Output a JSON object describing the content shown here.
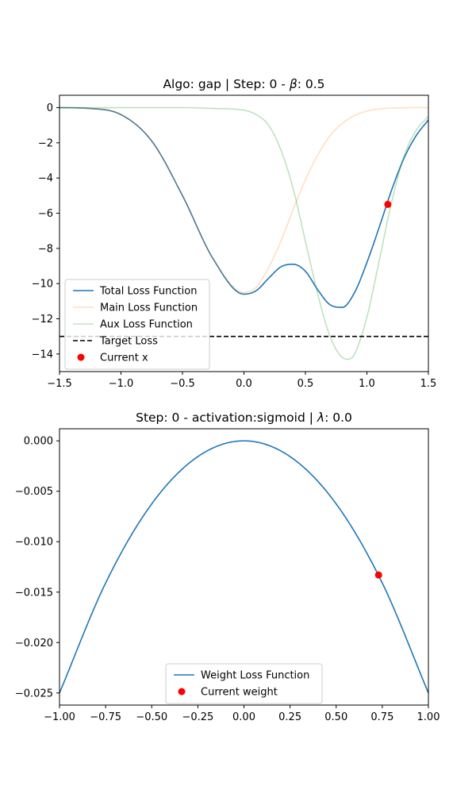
{
  "chart_data": [
    {
      "type": "line",
      "title": "Algo: gap | Step: 0 - β: 0.5",
      "title_parts": {
        "pre": "Algo: gap | Step: 0 - ",
        "symbol": "β",
        "post": ": 0.5"
      },
      "xlabel": "",
      "ylabel": "",
      "xlim": [
        -1.5,
        1.5
      ],
      "ylim": [
        -15,
        0.7
      ],
      "xticks": [
        -1.5,
        -1.0,
        -0.5,
        0.0,
        0.5,
        1.0,
        1.5
      ],
      "xtick_labels": [
        "−1.5",
        "−1.0",
        "−0.5",
        "0.0",
        "0.5",
        "1.0",
        "1.5"
      ],
      "yticks": [
        0,
        -2,
        -4,
        -6,
        -8,
        -10,
        -12,
        -14
      ],
      "ytick_labels": [
        "0",
        "−2",
        "−4",
        "−6",
        "−8",
        "−10",
        "−12",
        "−14"
      ],
      "grid": false,
      "legend_position": "lower-left",
      "series": [
        {
          "name": "Total Loss Function",
          "color": "#1f77b4",
          "opacity": 1,
          "x": [
            -1.5,
            -1.25,
            -1.0,
            -0.75,
            -0.5,
            -0.25,
            0.0,
            0.1,
            0.2,
            0.3,
            0.4,
            0.5,
            0.6,
            0.7,
            0.8,
            0.9,
            1.0,
            1.1,
            1.2,
            1.3,
            1.4,
            1.5
          ],
          "y": [
            0.0,
            -0.05,
            -0.4,
            -1.9,
            -5.0,
            -8.6,
            -10.6,
            -10.4,
            -9.7,
            -9.05,
            -8.9,
            -9.3,
            -10.35,
            -11.2,
            -11.35,
            -10.5,
            -8.8,
            -6.8,
            -4.7,
            -2.9,
            -1.6,
            -0.7
          ]
        },
        {
          "name": "Main Loss Function",
          "color": "#ff7f0e",
          "opacity": 0.25,
          "x": [
            -1.5,
            -1.25,
            -1.0,
            -0.75,
            -0.5,
            -0.25,
            0.0,
            0.1,
            0.2,
            0.3,
            0.4,
            0.5,
            0.6,
            0.7,
            0.8,
            0.9,
            1.0,
            1.1,
            1.2,
            1.3,
            1.4,
            1.5
          ],
          "y": [
            0.0,
            -0.05,
            -0.4,
            -1.9,
            -5.0,
            -8.6,
            -10.5,
            -10.2,
            -9.1,
            -7.6,
            -5.8,
            -4.1,
            -2.7,
            -1.6,
            -0.9,
            -0.45,
            -0.2,
            -0.08,
            -0.03,
            -0.01,
            0.0,
            0.0
          ]
        },
        {
          "name": "Aux Loss Function",
          "color": "#2ca02c",
          "opacity": 0.3,
          "x": [
            -1.5,
            -1.0,
            -0.5,
            -0.25,
            0.0,
            0.1,
            0.2,
            0.3,
            0.4,
            0.5,
            0.6,
            0.7,
            0.8,
            0.85,
            0.9,
            1.0,
            1.1,
            1.2,
            1.3,
            1.4,
            1.5
          ],
          "y": [
            0.0,
            0.0,
            0.0,
            -0.05,
            -0.15,
            -0.4,
            -1.0,
            -2.4,
            -4.6,
            -7.6,
            -10.6,
            -13.0,
            -14.2,
            -14.3,
            -14.0,
            -11.9,
            -8.7,
            -5.4,
            -2.8,
            -1.3,
            -0.5
          ]
        }
      ],
      "reference_line": {
        "name": "Target Loss",
        "y": -13,
        "color": "#000000",
        "style": "dashed"
      },
      "marker": {
        "name": "Current x",
        "x": 1.17,
        "y": -5.5,
        "color": "#ff0000"
      }
    },
    {
      "type": "line",
      "title": "Step: 0 - activation:sigmoid | λ: 0.0",
      "title_parts": {
        "pre": "Step: 0 - activation:sigmoid | ",
        "symbol": "λ",
        "post": ": 0.0"
      },
      "xlabel": "",
      "ylabel": "",
      "xlim": [
        -1.0,
        1.0
      ],
      "ylim": [
        -0.0262,
        0.0012
      ],
      "xticks": [
        -1.0,
        -0.75,
        -0.5,
        -0.25,
        0.0,
        0.25,
        0.5,
        0.75,
        1.0
      ],
      "xtick_labels": [
        "−1.00",
        "−0.75",
        "−0.50",
        "−0.25",
        "0.00",
        "0.25",
        "0.50",
        "0.75",
        "1.00"
      ],
      "yticks": [
        0.0,
        -0.005,
        -0.01,
        -0.015,
        -0.02,
        -0.025
      ],
      "ytick_labels": [
        "0.000",
        "−0.005",
        "−0.010",
        "−0.015",
        "−0.020",
        "−0.025"
      ],
      "grid": false,
      "legend_position": "lower-center",
      "series": [
        {
          "name": "Weight Loss Function",
          "color": "#1f77b4",
          "x": [
            -1.0,
            -0.75,
            -0.5,
            -0.25,
            0.0,
            0.25,
            0.5,
            0.75,
            1.0
          ],
          "y": [
            -0.025,
            -0.0141,
            -0.00625,
            -0.00156,
            0.0,
            -0.00156,
            -0.00625,
            -0.0141,
            -0.025
          ]
        }
      ],
      "marker": {
        "name": "Current weight",
        "x": 0.73,
        "y": -0.0133,
        "color": "#ff0000"
      }
    }
  ]
}
